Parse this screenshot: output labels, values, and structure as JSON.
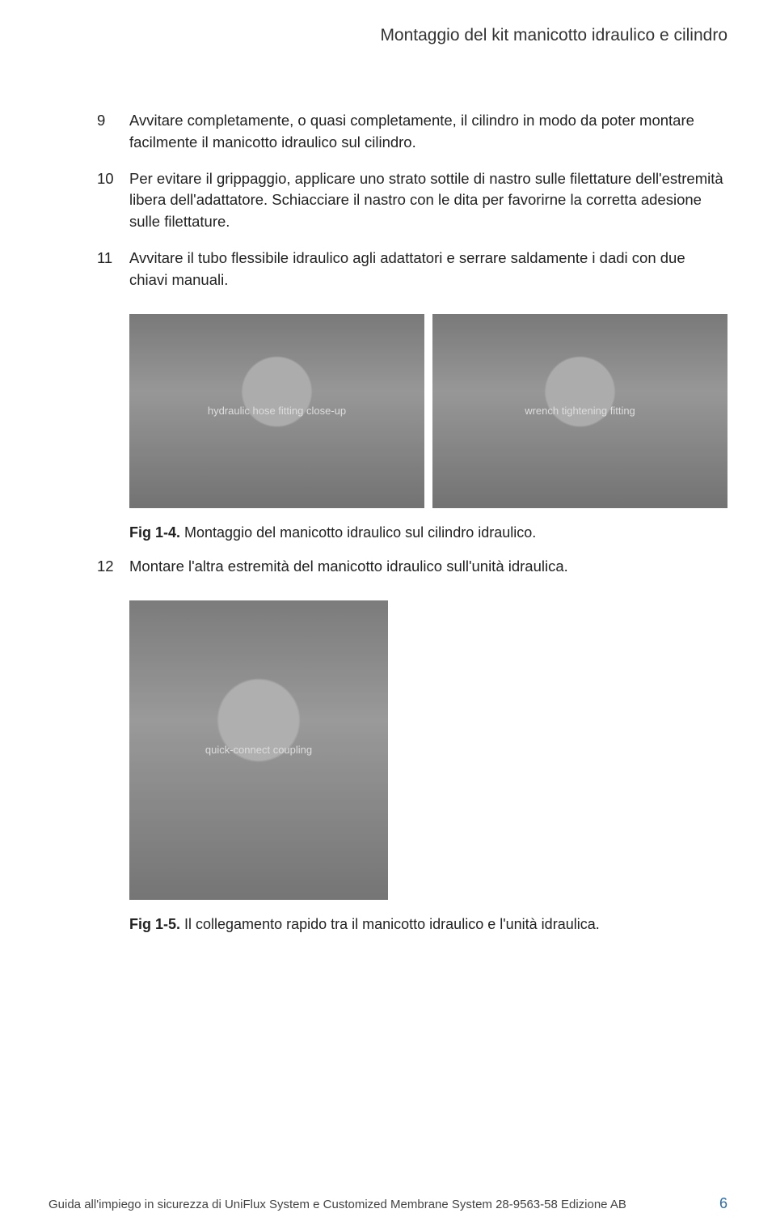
{
  "header": {
    "title": "Montaggio del kit manicotto idraulico e cilindro"
  },
  "steps": [
    {
      "num": "9",
      "text": "Avvitare completamente, o quasi completamente, il cilindro in modo da poter montare facilmente il manicotto idraulico sul cilindro."
    },
    {
      "num": "10",
      "text": "Per evitare il grippaggio, applicare uno strato sottile di nastro sulle filettature dell'estremità libera dell'adattatore. Schiacciare il nastro con le dita per favorirne la corretta adesione sulle filettature."
    },
    {
      "num": "11",
      "text": "Avvitare il tubo flessibile idraulico agli adattatori e serrare saldamente i dadi con due chiavi manuali."
    }
  ],
  "fig1": {
    "label": "Fig 1-4.",
    "caption": " Montaggio del manicotto idraulico sul cilindro idraulico.",
    "images": [
      {
        "alt": "hydraulic hose fitting close-up"
      },
      {
        "alt": "wrench tightening fitting"
      }
    ]
  },
  "step12": {
    "num": "12",
    "text": "Montare l'altra estremità del manicotto idraulico sull'unità idraulica."
  },
  "fig2": {
    "label": "Fig 1-5.",
    "caption": " Il collegamento rapido tra il manicotto idraulico e l'unità idraulica.",
    "image": {
      "alt": "quick-connect coupling"
    }
  },
  "footer": {
    "text": "Guida all'impiego in sicurezza di UniFlux System e Customized Membrane System 28-9563-58 Edizione AB",
    "page": "6"
  }
}
